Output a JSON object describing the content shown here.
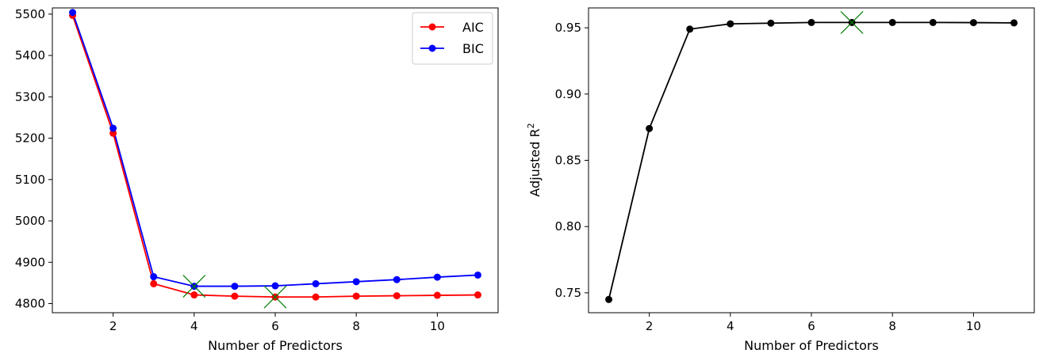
{
  "chart_data": [
    {
      "type": "line",
      "title": "",
      "xlabel": "Number of Predictors",
      "ylabel": "",
      "xlim": [
        0.5,
        11.5
      ],
      "ylim": [
        4778,
        5515
      ],
      "xticks": [
        2,
        4,
        6,
        8,
        10
      ],
      "yticks": [
        4800,
        4900,
        5000,
        5100,
        5200,
        5300,
        5400,
        5500
      ],
      "x": [
        1,
        2,
        3,
        4,
        5,
        6,
        7,
        8,
        9,
        10,
        11
      ],
      "series": [
        {
          "name": "AIC",
          "color": "#ff0000",
          "values": [
            5497,
            5212,
            4848,
            4821,
            4818,
            4816,
            4816,
            4818,
            4819,
            4820,
            4821
          ]
        },
        {
          "name": "BIC",
          "color": "#0000ff",
          "values": [
            5504,
            5224,
            4865,
            4842,
            4842,
            4843,
            4848,
            4853,
            4858,
            4864,
            4869
          ]
        }
      ],
      "markers": [
        {
          "label": "min BIC",
          "x": 4,
          "y": 4842,
          "color": "#008000"
        },
        {
          "label": "min AIC",
          "x": 6,
          "y": 4816,
          "color": "#008000"
        }
      ],
      "legend": {
        "position": "top-right",
        "entries": [
          "AIC",
          "BIC"
        ]
      }
    },
    {
      "type": "line",
      "title": "",
      "xlabel": "Number of Predictors",
      "ylabel": "Adjusted R",
      "ylabel_sup": "2",
      "xlim": [
        0.5,
        11.5
      ],
      "ylim": [
        0.735,
        0.965
      ],
      "xticks": [
        2,
        4,
        6,
        8,
        10
      ],
      "yticks": [
        "0.75",
        "0.80",
        "0.85",
        "0.90",
        "0.95"
      ],
      "x": [
        1,
        2,
        3,
        4,
        5,
        6,
        7,
        8,
        9,
        10,
        11
      ],
      "series": [
        {
          "name": "Adjusted R2",
          "color": "#000000",
          "values": [
            0.745,
            0.874,
            0.949,
            0.953,
            0.9535,
            0.954,
            0.954,
            0.954,
            0.954,
            0.9539,
            0.9537
          ]
        }
      ],
      "markers": [
        {
          "label": "max Adjusted R2",
          "x": 7,
          "y": 0.954,
          "color": "#008000"
        }
      ]
    }
  ]
}
